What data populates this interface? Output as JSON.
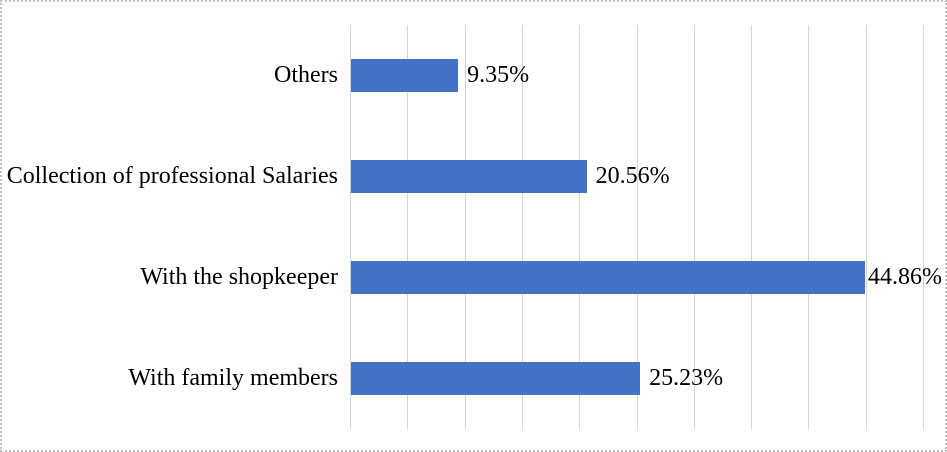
{
  "chart_data": {
    "type": "bar",
    "orientation": "horizontal",
    "title": "",
    "xlabel": "",
    "ylabel": "",
    "categories_top_to_bottom": [
      "Others",
      "Collection of professional Salaries",
      "With the shopkeeper",
      "With family members"
    ],
    "values": [
      9.35,
      20.56,
      44.86,
      25.23
    ],
    "data_labels": [
      "9.35%",
      "20.56%",
      "44.86%",
      "25.23%"
    ],
    "xlim": [
      0,
      50
    ],
    "gridline_step": 5,
    "grid": "vertical-major-only",
    "axis_tick_labels": "none",
    "legend": "none",
    "colors": {
      "bar": "#4472C4",
      "gridline": "#d4d4d4",
      "text": "#000000",
      "background": "#ffffff",
      "frame_border": "#c0c0c0"
    }
  }
}
